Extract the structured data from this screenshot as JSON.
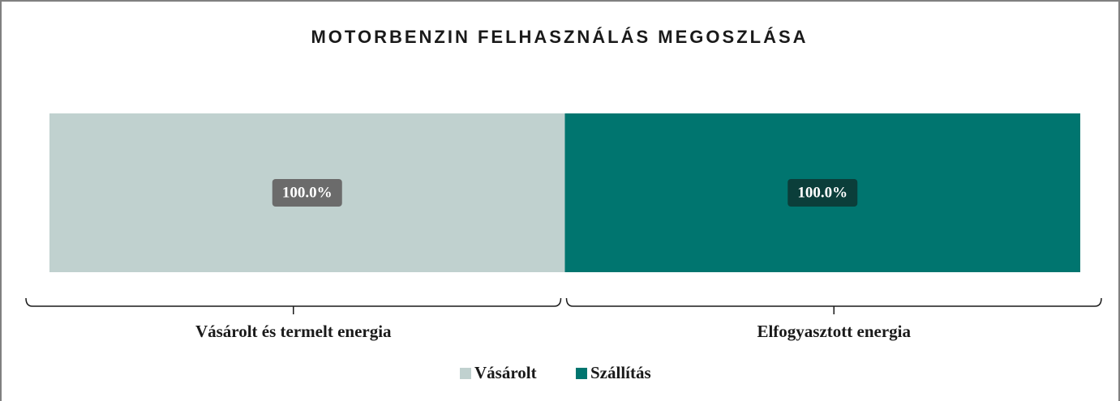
{
  "chart_data": {
    "type": "stacked_bar",
    "title": "MOTORBENZIN FELHASZNÁLÁS MEGOSZLÁSA",
    "categories": [
      "Vásárolt és termelt energia",
      "Elfogyasztott energia"
    ],
    "series": [
      {
        "name": "Vásárolt",
        "color": "#c0d1cf",
        "label_color": "#6b6b6b",
        "values": [
          100,
          0
        ],
        "value_labels": [
          "100.0%",
          null
        ]
      },
      {
        "name": "Szállítás",
        "color": "#00756f",
        "label_color": "#0b3e3a",
        "values": [
          0,
          100
        ],
        "value_labels": [
          null,
          "100.0%"
        ]
      }
    ],
    "ylim": [
      0,
      100
    ],
    "legend": "bottom"
  }
}
